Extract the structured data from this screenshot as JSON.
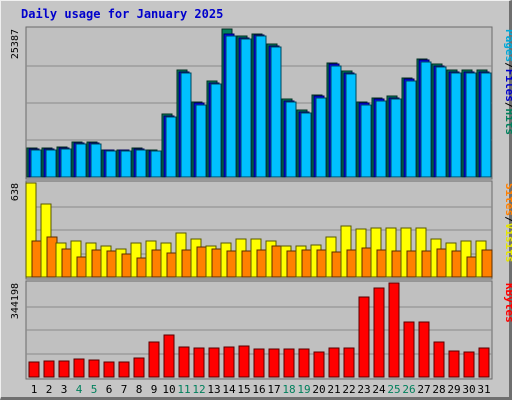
{
  "title": "Daily usage for January 2025",
  "chart_data": {
    "type": "bar",
    "title": "Daily usage for January 2025",
    "categories": [
      "1",
      "2",
      "3",
      "4",
      "5",
      "6",
      "7",
      "8",
      "9",
      "10",
      "11",
      "12",
      "13",
      "14",
      "15",
      "16",
      "17",
      "18",
      "19",
      "20",
      "21",
      "22",
      "23",
      "24",
      "25",
      "26",
      "27",
      "28",
      "29",
      "30",
      "31"
    ],
    "weekend_days": [
      "4",
      "5",
      "11",
      "12",
      "18",
      "19",
      "25",
      "26"
    ],
    "colors": {
      "hits": "#00805c",
      "files": "#0000ff",
      "pages": "#00c0ff",
      "visits": "#ffff00",
      "sites": "#ff8000",
      "kbytes": "#ff0000",
      "weekday_label": "#000000",
      "weekend_label": "#00805c"
    },
    "panels": [
      {
        "name": "hits-files-pages",
        "max_label": "25387",
        "ylim": [
          0,
          25387
        ],
        "legend": [
          {
            "text": "Pages",
            "color": "#00a8d8"
          },
          {
            "text": "/",
            "color": "#000000"
          },
          {
            "text": "Files",
            "color": "#0000cc"
          },
          {
            "text": "/",
            "color": "#000000"
          },
          {
            "text": "Hits",
            "color": "#00805c"
          }
        ],
        "series": [
          {
            "name": "Hits",
            "color": "#00805c",
            "values": [
              4950,
              4950,
              5080,
              6020,
              6020,
              4680,
              4700,
              4950,
              4680,
              10770,
              18310,
              12920,
              16460,
              25387,
              24140,
              24520,
              22760,
              13320,
              11440,
              14150,
              19640,
              18190,
              12920,
              13590,
              13840,
              17010,
              20320,
              19380,
              18320,
              18320,
              18320
            ]
          },
          {
            "name": "Files",
            "color": "#0000ff",
            "values": [
              4810,
              4810,
              4940,
              5880,
              5880,
              4550,
              4560,
              4810,
              4540,
              10500,
              18040,
              12650,
              16190,
              24520,
              23890,
              24410,
              22490,
              13060,
              11180,
              13880,
              19370,
              17920,
              12650,
              13320,
              13570,
              16740,
              20060,
              19110,
              18050,
              18050,
              18050
            ]
          },
          {
            "name": "Pages",
            "color": "#00c0ff",
            "values": [
              4670,
              4670,
              4800,
              5740,
              5740,
              4410,
              4420,
              4670,
              4400,
              10230,
              17770,
              12380,
              15920,
              24270,
              23630,
              24140,
              22220,
              12790,
              10910,
              13610,
              19100,
              17650,
              12380,
              13050,
              13300,
              16470,
              19790,
              18840,
              17780,
              17780,
              17780
            ]
          }
        ]
      },
      {
        "name": "visits-sites",
        "max_label": "638",
        "ylim": [
          0,
          638
        ],
        "legend": [
          {
            "text": "Sites",
            "color": "#ff8000"
          },
          {
            "text": "/",
            "color": "#000000"
          },
          {
            "text": "Visits",
            "color": "#e6e600"
          }
        ],
        "series": [
          {
            "name": "Visits",
            "color": "#ffff00",
            "values": [
              638,
              498,
              232,
              246,
              232,
              212,
              191,
              232,
              246,
              232,
              302,
              260,
              212,
              232,
              260,
              260,
              246,
              212,
              212,
              219,
              274,
              344,
              323,
              330,
              330,
              330,
              330,
              260,
              232,
              246,
              246
            ]
          },
          {
            "name": "Sites",
            "color": "#ff8000",
            "values": [
              246,
              274,
              191,
              134,
              184,
              177,
              156,
              128,
              184,
              163,
              184,
              205,
              191,
              177,
              177,
              184,
              212,
              177,
              184,
              184,
              170,
              184,
              198,
              184,
              177,
              177,
              177,
              191,
              177,
              134,
              184
            ]
          }
        ]
      },
      {
        "name": "kbytes",
        "max_label": "344198",
        "ylim": [
          0,
          344198
        ],
        "legend": [
          {
            "text": "KBytes",
            "color": "#ff0000"
          }
        ],
        "series": [
          {
            "name": "KBytes",
            "color": "#ff0000",
            "values": [
              53950,
              58620,
              58620,
              65670,
              63330,
              53950,
              53950,
              70370,
              126680,
              152450,
              110240,
              105550,
              105550,
              110240,
              114940,
              103200,
              100860,
              103200,
              100860,
              91480,
              107900,
              107900,
              293000,
              325830,
              344198,
              201960,
              201960,
              126680,
              96170,
              91480,
              105550
            ]
          }
        ]
      }
    ]
  }
}
